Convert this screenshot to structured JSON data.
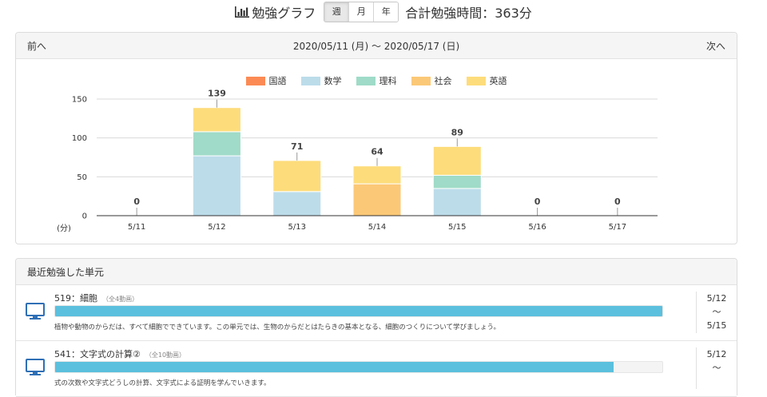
{
  "header": {
    "title": "勉強グラフ",
    "period_tabs": [
      "週",
      "月",
      "年"
    ],
    "selected_tab": "週",
    "total_label": "合計勉強時間：363分"
  },
  "weekly": {
    "prev_label": "前へ",
    "next_label": "次へ",
    "range_label": "2020/05/11 (月) 〜 2020/05/17 (日)"
  },
  "chart_data": {
    "type": "bar",
    "stacked": true,
    "categories": [
      "5/11",
      "5/12",
      "5/13",
      "5/14",
      "5/15",
      "5/16",
      "5/17"
    ],
    "series": [
      {
        "name": "国語",
        "color": "#fc8a54",
        "values": [
          0,
          0,
          0,
          0,
          0,
          0,
          0
        ]
      },
      {
        "name": "数学",
        "color": "#bcdcea",
        "values": [
          0,
          77,
          31,
          0,
          35,
          0,
          0
        ]
      },
      {
        "name": "理科",
        "color": "#9fdbc8",
        "values": [
          0,
          31,
          0,
          0,
          17,
          0,
          0
        ]
      },
      {
        "name": "社会",
        "color": "#fbc877",
        "values": [
          0,
          0,
          0,
          41,
          0,
          0,
          0
        ]
      },
      {
        "name": "英語",
        "color": "#fddc7b",
        "values": [
          0,
          31,
          40,
          23,
          37,
          0,
          0
        ]
      }
    ],
    "totals": [
      0,
      139,
      71,
      64,
      89,
      0,
      0
    ],
    "y_ticks": [
      0,
      50,
      100,
      150
    ],
    "ylim": [
      0,
      150
    ],
    "ylabel": "(分)",
    "grid": true,
    "legend_position": "top"
  },
  "recent": {
    "title": "最近勉強した単元",
    "units": [
      {
        "title": "519：細胞",
        "count": "（全4動画）",
        "progress": 1.0,
        "description": "植物や動物のからだは、すべて細胞でできています。この単元では、生物のからだとはたらきの基本となる、細胞のつくりについて学びましょう。",
        "date_from": "5/12",
        "date_sep": "〜",
        "date_to": "5/15"
      },
      {
        "title": "541：文字式の計算②",
        "count": "（全10動画）",
        "progress": 0.92,
        "description": "式の次数や文字式どうしの計算、文字式による証明を学んでいきます。",
        "date_from": "5/12",
        "date_sep": "〜",
        "date_to": ""
      }
    ]
  }
}
